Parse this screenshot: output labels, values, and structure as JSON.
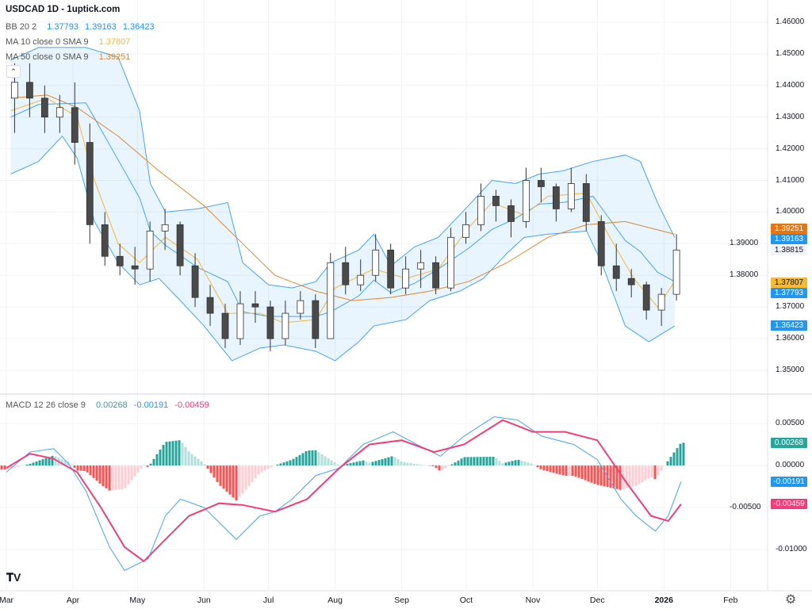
{
  "header": {
    "title": "USDCAD 1D - 1uptick.com"
  },
  "legend": {
    "bb": {
      "label": "BB 20 2",
      "values": [
        "1.37793",
        "1.39163",
        "1.36423"
      ]
    },
    "ma10": {
      "label": "MA 10 close 0 SMA 9",
      "value": "1.37807"
    },
    "ma50": {
      "label": "MA 50 close 0 SMA 9",
      "value": "1.39251"
    },
    "macd": {
      "label": "MACD 12 26 close 9",
      "values": [
        "0.00268",
        "-0.00191",
        "-0.00459"
      ]
    }
  },
  "badges": {
    "price": [
      {
        "value": "1.39251",
        "color": "#e8760a",
        "text": "#ffffff",
        "price": 1.39251
      },
      {
        "value": "1.39163",
        "color": "#2196f3",
        "text": "#ffffff",
        "price": 1.39163
      },
      {
        "value": "1.38815",
        "color": "#f0f3fa",
        "text": "#131722",
        "price": 1.38815
      },
      {
        "value": "1.37807",
        "color": "#f5b932",
        "text": "#131722",
        "price": 1.37807
      },
      {
        "value": "1.37793",
        "color": "#2196f3",
        "text": "#ffffff",
        "price": 1.37793
      },
      {
        "value": "1.36423",
        "color": "#2196f3",
        "text": "#ffffff",
        "price": 1.36423
      }
    ],
    "macd": [
      {
        "value": "0.00268",
        "color": "#26a69a",
        "text": "#ffffff",
        "v": 0.00268
      },
      {
        "value": "-0.00191",
        "color": "#2196f3",
        "text": "#ffffff",
        "v": -0.00191
      },
      {
        "value": "-0.00459",
        "color": "#f23d78",
        "text": "#ffffff",
        "v": -0.00459
      }
    ]
  },
  "colors": {
    "up": "#ffffff",
    "down": "#4a4a4a",
    "wick": "#333333",
    "bb": "#42a5f5",
    "bb_fill": "rgba(33,150,243,0.10)",
    "ma10": "#f5b932",
    "ma50": "#e0882a",
    "macd": "#42a5f5",
    "signal": "#f23d78",
    "hist_up_strong": "#26a69a",
    "hist_up_weak": "#b2dfdb",
    "hist_down_strong": "#ff5252",
    "hist_down_weak": "#ffcdd2"
  },
  "chart_data": [
    {
      "type": "candlestick",
      "title": "USDCAD 1D",
      "ylim": [
        1.35,
        1.46
      ],
      "y_ticks": [
        "1.46000",
        "1.45000",
        "1.44000",
        "1.43000",
        "1.42000",
        "1.41000",
        "1.40000",
        "1.39000",
        "1.38000",
        "1.37000",
        "1.36000",
        "1.35000"
      ],
      "x_ticks": [
        "Mar",
        "Apr",
        "May",
        "Jun",
        "Jul",
        "Aug",
        "Sep",
        "Oct",
        "Nov",
        "Dec",
        "2026",
        "Feb"
      ],
      "grid": true,
      "ohlc": [
        [
          "2025-03-03",
          1.436,
          1.447,
          1.425,
          1.441
        ],
        [
          "2025-03-10",
          1.441,
          1.447,
          1.43,
          1.436
        ],
        [
          "2025-03-17",
          1.436,
          1.44,
          1.425,
          1.43
        ],
        [
          "2025-03-24",
          1.43,
          1.437,
          1.425,
          1.433
        ],
        [
          "2025-03-31",
          1.433,
          1.441,
          1.415,
          1.422
        ],
        [
          "2025-04-07",
          1.422,
          1.428,
          1.39,
          1.396
        ],
        [
          "2025-04-14",
          1.396,
          1.4,
          1.383,
          1.386
        ],
        [
          "2025-04-21",
          1.386,
          1.39,
          1.38,
          1.383
        ],
        [
          "2025-04-28",
          1.383,
          1.389,
          1.377,
          1.382
        ],
        [
          "2025-05-05",
          1.382,
          1.397,
          1.378,
          1.394
        ],
        [
          "2025-05-12",
          1.394,
          1.401,
          1.388,
          1.396
        ],
        [
          "2025-05-19",
          1.396,
          1.397,
          1.38,
          1.383
        ],
        [
          "2025-05-26",
          1.383,
          1.387,
          1.37,
          1.373
        ],
        [
          "2025-06-02",
          1.373,
          1.377,
          1.364,
          1.368
        ],
        [
          "2025-06-09",
          1.368,
          1.371,
          1.357,
          1.36
        ],
        [
          "2025-06-16",
          1.36,
          1.375,
          1.358,
          1.371
        ],
        [
          "2025-06-23",
          1.371,
          1.375,
          1.365,
          1.37
        ],
        [
          "2025-06-30",
          1.37,
          1.372,
          1.356,
          1.36
        ],
        [
          "2025-07-07",
          1.36,
          1.372,
          1.358,
          1.368
        ],
        [
          "2025-07-14",
          1.368,
          1.375,
          1.366,
          1.372
        ],
        [
          "2025-07-21",
          1.372,
          1.374,
          1.357,
          1.36
        ],
        [
          "2025-07-28",
          1.36,
          1.387,
          1.36,
          1.384
        ],
        [
          "2025-08-04",
          1.384,
          1.389,
          1.374,
          1.377
        ],
        [
          "2025-08-11",
          1.377,
          1.385,
          1.375,
          1.38
        ],
        [
          "2025-08-18",
          1.38,
          1.393,
          1.378,
          1.388
        ],
        [
          "2025-08-25",
          1.388,
          1.39,
          1.374,
          1.376
        ],
        [
          "2025-09-01",
          1.376,
          1.386,
          1.374,
          1.382
        ],
        [
          "2025-09-08",
          1.382,
          1.388,
          1.376,
          1.384
        ],
        [
          "2025-09-15",
          1.384,
          1.386,
          1.374,
          1.376
        ],
        [
          "2025-09-22",
          1.376,
          1.395,
          1.375,
          1.392
        ],
        [
          "2025-09-29",
          1.392,
          1.4,
          1.39,
          1.396
        ],
        [
          "2025-10-06",
          1.396,
          1.409,
          1.394,
          1.405
        ],
        [
          "2025-10-13",
          1.405,
          1.407,
          1.397,
          1.402
        ],
        [
          "2025-10-20",
          1.402,
          1.404,
          1.392,
          1.397
        ],
        [
          "2025-10-27",
          1.397,
          1.414,
          1.395,
          1.41
        ],
        [
          "2025-11-03",
          1.41,
          1.414,
          1.403,
          1.408
        ],
        [
          "2025-11-10",
          1.408,
          1.409,
          1.397,
          1.401
        ],
        [
          "2025-11-17",
          1.401,
          1.414,
          1.4,
          1.409
        ],
        [
          "2025-11-24",
          1.409,
          1.412,
          1.394,
          1.397
        ],
        [
          "2025-12-01",
          1.397,
          1.399,
          1.38,
          1.383
        ],
        [
          "2025-12-08",
          1.383,
          1.39,
          1.375,
          1.379
        ],
        [
          "2025-12-15",
          1.379,
          1.382,
          1.373,
          1.377
        ],
        [
          "2025-12-22",
          1.377,
          1.378,
          1.366,
          1.369
        ],
        [
          "2025-12-29",
          1.369,
          1.376,
          1.364,
          1.374
        ],
        [
          "2026-01-05",
          1.374,
          1.393,
          1.372,
          1.388
        ]
      ],
      "bb_upper": [
        [
          "2025-03-03",
          1.448
        ],
        [
          "2025-03-16",
          1.452
        ],
        [
          "2025-04-07",
          1.452
        ],
        [
          "2025-04-22",
          1.449
        ],
        [
          "2025-05-02",
          1.432
        ],
        [
          "2025-05-07",
          1.409
        ],
        [
          "2025-05-14",
          1.4
        ],
        [
          "2025-05-29",
          1.401
        ],
        [
          "2025-06-12",
          1.403
        ],
        [
          "2025-06-19",
          1.384
        ],
        [
          "2025-07-01",
          1.377
        ],
        [
          "2025-07-12",
          1.376
        ],
        [
          "2025-07-23",
          1.378
        ],
        [
          "2025-07-30",
          1.384
        ],
        [
          "2025-08-12",
          1.388
        ],
        [
          "2025-08-19",
          1.393
        ],
        [
          "2025-08-27",
          1.383
        ],
        [
          "2025-09-07",
          1.389
        ],
        [
          "2025-09-18",
          1.392
        ],
        [
          "2025-10-02",
          1.402
        ],
        [
          "2025-10-13",
          1.41
        ],
        [
          "2025-10-24",
          1.409
        ],
        [
          "2025-11-04",
          1.412
        ],
        [
          "2025-11-15",
          1.413
        ],
        [
          "2025-11-29",
          1.416
        ],
        [
          "2025-12-14",
          1.418
        ],
        [
          "2025-12-21",
          1.416
        ],
        [
          "2025-12-29",
          1.403
        ],
        [
          "2026-01-06",
          1.392
        ]
      ],
      "bb_lower": [
        [
          "2025-03-03",
          1.412
        ],
        [
          "2025-03-16",
          1.416
        ],
        [
          "2025-03-27",
          1.424
        ],
        [
          "2025-04-03",
          1.417
        ],
        [
          "2025-04-11",
          1.397
        ],
        [
          "2025-04-22",
          1.384
        ],
        [
          "2025-05-02",
          1.377
        ],
        [
          "2025-05-11",
          1.379
        ],
        [
          "2025-05-21",
          1.372
        ],
        [
          "2025-06-01",
          1.364
        ],
        [
          "2025-06-14",
          1.353
        ],
        [
          "2025-06-27",
          1.357
        ],
        [
          "2025-07-08",
          1.358
        ],
        [
          "2025-07-23",
          1.356
        ],
        [
          "2025-08-01",
          1.353
        ],
        [
          "2025-08-12",
          1.359
        ],
        [
          "2025-08-19",
          1.364
        ],
        [
          "2025-09-03",
          1.366
        ],
        [
          "2025-09-14",
          1.372
        ],
        [
          "2025-09-28",
          1.375
        ],
        [
          "2025-10-09",
          1.379
        ],
        [
          "2025-10-20",
          1.387
        ],
        [
          "2025-10-28",
          1.392
        ],
        [
          "2025-11-08",
          1.393
        ],
        [
          "2025-11-26",
          1.394
        ],
        [
          "2025-12-03",
          1.384
        ],
        [
          "2025-12-14",
          1.364
        ],
        [
          "2025-12-25",
          1.359
        ],
        [
          "2026-01-06",
          1.364
        ]
      ],
      "ma10": [
        [
          "2025-03-03",
          1.432
        ],
        [
          "2025-03-20",
          1.436
        ],
        [
          "2025-04-03",
          1.43
        ],
        [
          "2025-04-11",
          1.41
        ],
        [
          "2025-04-22",
          1.39
        ],
        [
          "2025-05-02",
          1.384
        ],
        [
          "2025-05-14",
          1.392
        ],
        [
          "2025-05-29",
          1.385
        ],
        [
          "2025-06-12",
          1.368
        ],
        [
          "2025-06-27",
          1.368
        ],
        [
          "2025-07-08",
          1.365
        ],
        [
          "2025-07-23",
          1.366
        ],
        [
          "2025-08-01",
          1.376
        ],
        [
          "2025-08-19",
          1.382
        ],
        [
          "2025-09-03",
          1.379
        ],
        [
          "2025-09-18",
          1.382
        ],
        [
          "2025-10-02",
          1.395
        ],
        [
          "2025-10-13",
          1.403
        ],
        [
          "2025-10-28",
          1.399
        ],
        [
          "2025-11-08",
          1.405
        ],
        [
          "2025-11-26",
          1.406
        ],
        [
          "2025-12-06",
          1.393
        ],
        [
          "2025-12-18",
          1.379
        ],
        [
          "2025-12-29",
          1.37
        ],
        [
          "2026-01-06",
          1.378
        ]
      ],
      "ma50": [
        [
          "2025-03-03",
          1.436
        ],
        [
          "2025-03-20",
          1.437
        ],
        [
          "2025-04-03",
          1.433
        ],
        [
          "2025-04-22",
          1.424
        ],
        [
          "2025-05-11",
          1.413
        ],
        [
          "2025-06-01",
          1.402
        ],
        [
          "2025-06-16",
          1.392
        ],
        [
          "2025-07-04",
          1.38
        ],
        [
          "2025-07-23",
          1.375
        ],
        [
          "2025-08-09",
          1.372
        ],
        [
          "2025-08-27",
          1.373
        ],
        [
          "2025-09-14",
          1.375
        ],
        [
          "2025-10-02",
          1.378
        ],
        [
          "2025-10-20",
          1.384
        ],
        [
          "2025-11-08",
          1.392
        ],
        [
          "2025-11-26",
          1.396
        ],
        [
          "2025-12-14",
          1.397
        ],
        [
          "2026-01-06",
          1.393
        ]
      ]
    },
    {
      "type": "line",
      "title": "MACD 12 26 close 9",
      "ylim": [
        -0.0145,
        0.0075
      ],
      "y_ticks": [
        "0.00500",
        "0.00000",
        "-0.00500",
        "-0.01000"
      ],
      "macd": [
        [
          "2025-03-01",
          -0.0008
        ],
        [
          "2025-03-12",
          0.0016
        ],
        [
          "2025-03-23",
          0.002
        ],
        [
          "2025-03-30",
          0.0002
        ],
        [
          "2025-04-07",
          -0.003
        ],
        [
          "2025-04-18",
          -0.0097
        ],
        [
          "2025-04-25",
          -0.0125
        ],
        [
          "2025-05-06",
          -0.0111
        ],
        [
          "2025-05-14",
          -0.006
        ],
        [
          "2025-05-21",
          -0.004
        ],
        [
          "2025-06-01",
          -0.005
        ],
        [
          "2025-06-16",
          -0.0088
        ],
        [
          "2025-06-27",
          -0.006
        ],
        [
          "2025-07-04",
          -0.0055
        ],
        [
          "2025-07-12",
          -0.004
        ],
        [
          "2025-07-23",
          -0.0012
        ],
        [
          "2025-08-03",
          -0.0003
        ],
        [
          "2025-08-14",
          0.0025
        ],
        [
          "2025-08-28",
          0.004
        ],
        [
          "2025-09-08",
          0.0025
        ],
        [
          "2025-09-19",
          0.0011
        ],
        [
          "2025-09-30",
          0.0035
        ],
        [
          "2025-10-14",
          0.0058
        ],
        [
          "2025-10-25",
          0.0054
        ],
        [
          "2025-11-05",
          0.0035
        ],
        [
          "2025-11-20",
          0.0025
        ],
        [
          "2025-12-01",
          0.0007
        ],
        [
          "2025-12-12",
          -0.004
        ],
        [
          "2025-12-19",
          -0.006
        ],
        [
          "2025-12-28",
          -0.0078
        ],
        [
          "2026-01-03",
          -0.006
        ],
        [
          "2026-01-09",
          -0.0019
        ]
      ],
      "signal": [
        [
          "2025-03-01",
          -0.0003
        ],
        [
          "2025-03-12",
          0.0014
        ],
        [
          "2025-03-23",
          0.0008
        ],
        [
          "2025-04-03",
          -0.0008
        ],
        [
          "2025-04-14",
          -0.005
        ],
        [
          "2025-04-25",
          -0.0097
        ],
        [
          "2025-05-04",
          -0.0114
        ],
        [
          "2025-05-14",
          -0.0088
        ],
        [
          "2025-05-25",
          -0.006
        ],
        [
          "2025-06-08",
          -0.0045
        ],
        [
          "2025-06-19",
          -0.0047
        ],
        [
          "2025-07-04",
          -0.0055
        ],
        [
          "2025-07-19",
          -0.004
        ],
        [
          "2025-08-03",
          -0.0003
        ],
        [
          "2025-08-17",
          0.0025
        ],
        [
          "2025-09-01",
          0.003
        ],
        [
          "2025-09-16",
          0.0016
        ],
        [
          "2025-09-30",
          0.0025
        ],
        [
          "2025-10-18",
          0.0054
        ],
        [
          "2025-11-01",
          0.004
        ],
        [
          "2025-11-16",
          0.004
        ],
        [
          "2025-12-01",
          0.003
        ],
        [
          "2025-12-15",
          -0.0022
        ],
        [
          "2025-12-26",
          -0.006
        ],
        [
          "2026-01-03",
          -0.0066
        ],
        [
          "2026-01-09",
          -0.0046
        ]
      ]
    }
  ]
}
